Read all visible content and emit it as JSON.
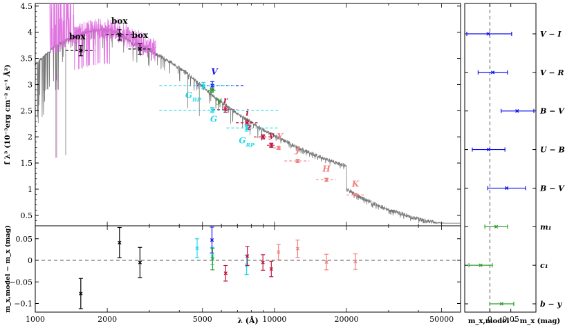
{
  "chart_data": [
    {
      "type": "scatter",
      "panel": "main-sed",
      "xlabel": "λ (Å)",
      "ylabel": "f λ³ (10⁻³erg cm⁻² s⁻¹ Å²)",
      "x_scale": "log",
      "xlim": [
        1000,
        60000
      ],
      "ylim": [
        0.3,
        4.55
      ],
      "x_ticks": [
        1000,
        2000,
        5000,
        10000,
        20000,
        50000
      ],
      "x_tick_labels": [
        "1000",
        "2000",
        "5000",
        "10000",
        "20000",
        "50000"
      ],
      "y_ticks": [
        0.5,
        1,
        1.5,
        2,
        2.5,
        3,
        3.5,
        4,
        4.5
      ],
      "y_tick_labels": [
        "0.5",
        "1",
        "1.5",
        "2",
        "2.5",
        "3",
        "3.5",
        "4",
        "4.5"
      ],
      "points": [
        {
          "label": "box",
          "x": 1550,
          "y": 3.65,
          "xlo": 1340,
          "xhi": 1780,
          "yerr": 0.1,
          "color": "#000000",
          "label_dx": -5,
          "label_dy": -16
        },
        {
          "label": "box",
          "x": 2250,
          "y": 3.95,
          "xlo": 1980,
          "xhi": 2580,
          "yerr": 0.1,
          "color": "#000000",
          "label_dx": 0,
          "label_dy": -16
        },
        {
          "label": "box",
          "x": 2740,
          "y": 3.68,
          "xlo": 2450,
          "xhi": 3050,
          "yerr": 0.1,
          "color": "#000000",
          "label_dx": 0,
          "label_dy": -16
        },
        {
          "label": "V",
          "x": 5500,
          "y": 2.98,
          "xlo": 4750,
          "xhi": 7500,
          "yerr": 0.08,
          "color": "#1010ee",
          "label_dx": 3,
          "label_dy": -16
        },
        {
          "label": "y",
          "x": 5480,
          "y": 2.89,
          "xlo": 5270,
          "xhi": 5690,
          "yerr": 0.04,
          "color": "#2e9e2e",
          "label_dx": 10,
          "label_dy": 18
        },
        {
          "label": "r",
          "x": 6250,
          "y": 2.52,
          "xlo": 5500,
          "xhi": 7000,
          "yerr": 0.05,
          "color": "#c0143c",
          "label_dx": 0,
          "label_dy": -10
        },
        {
          "label": "i",
          "x": 7700,
          "y": 2.27,
          "xlo": 6900,
          "xhi": 8500,
          "yerr": 0.05,
          "color": "#c0143c",
          "label_dx": 0,
          "label_dy": -10
        },
        {
          "label": "z",
          "x": 8950,
          "y": 2.0,
          "xlo": 8200,
          "xhi": 9700,
          "yerr": 0.04,
          "color": "#c0143c",
          "label_dx": -20,
          "label_dy": -10
        },
        {
          "label": "y",
          "x": 9700,
          "y": 1.84,
          "xlo": 9300,
          "xhi": 10100,
          "yerr": 0.04,
          "color": "#c0143c",
          "label_dx": 0,
          "label_dy": -11
        },
        {
          "label": "Y",
          "x": 10400,
          "y": 1.79,
          "xlo": 9900,
          "xhi": 10900,
          "yerr": 0.03,
          "color": "#f08080",
          "label_dx": 2,
          "label_dy": -12
        },
        {
          "label": "J",
          "x": 12500,
          "y": 1.54,
          "xlo": 11000,
          "xhi": 14000,
          "yerr": 0.03,
          "color": "#f08080",
          "label_dx": 0,
          "label_dy": -12
        },
        {
          "label": "H",
          "x": 16500,
          "y": 1.18,
          "xlo": 14900,
          "xhi": 18100,
          "yerr": 0.03,
          "color": "#f08080",
          "label_dx": 0,
          "label_dy": -12
        },
        {
          "label": "K",
          "x": 21800,
          "y": 0.89,
          "xlo": 20000,
          "xhi": 24000,
          "yerr": 0.02,
          "color": "#f08080",
          "label_dx": 0,
          "label_dy": -12
        },
        {
          "label": "G_BP",
          "x": 5050,
          "y": 2.98,
          "xlo": 3300,
          "xhi": 6800,
          "yerr": 0.06,
          "color": "#20d8e8",
          "label_dx": -15,
          "label_dy": 18
        },
        {
          "label": "G",
          "x": 5500,
          "y": 2.51,
          "xlo": 3300,
          "xhi": 10500,
          "yerr": 0.05,
          "color": "#20d8e8",
          "label_dx": 2,
          "label_dy": 17
        },
        {
          "label": "G_RP",
          "x": 7650,
          "y": 2.17,
          "xlo": 6300,
          "xhi": 10500,
          "yerr": 0.06,
          "color": "#20d8e8",
          "label_dx": 0,
          "label_dy": 22
        }
      ]
    },
    {
      "type": "scatter",
      "panel": "residuals",
      "xlabel": "λ (Å)",
      "ylabel": "m_x,model − m_x (mag)",
      "x_scale": "log",
      "xlim": [
        1000,
        60000
      ],
      "ylim": [
        -0.12,
        0.08
      ],
      "y_ticks": [
        -0.1,
        -0.05,
        0,
        0.05
      ],
      "y_tick_labels": [
        "−0.1",
        "−0.05",
        "0",
        "0.05"
      ],
      "points": [
        {
          "x": 1550,
          "y": -0.077,
          "err": 0.035,
          "color": "#000000"
        },
        {
          "x": 2250,
          "y": 0.041,
          "err": 0.035,
          "color": "#000000"
        },
        {
          "x": 2740,
          "y": -0.005,
          "err": 0.035,
          "color": "#000000"
        },
        {
          "x": 4750,
          "y": 0.028,
          "err": 0.022,
          "color": "#20d8e8"
        },
        {
          "x": 5500,
          "y": 0.01,
          "err": 0.02,
          "color": "#20d8e8"
        },
        {
          "x": 7650,
          "y": -0.011,
          "err": 0.022,
          "color": "#20d8e8"
        },
        {
          "x": 5480,
          "y": 0.047,
          "err": 0.03,
          "color": "#1010ee"
        },
        {
          "x": 5510,
          "y": 0.003,
          "err": 0.025,
          "color": "#2e9e2e"
        },
        {
          "x": 6250,
          "y": -0.03,
          "err": 0.018,
          "color": "#c0143c"
        },
        {
          "x": 7700,
          "y": 0.01,
          "err": 0.022,
          "color": "#c0143c"
        },
        {
          "x": 8950,
          "y": -0.005,
          "err": 0.018,
          "color": "#c0143c"
        },
        {
          "x": 9700,
          "y": -0.02,
          "err": 0.018,
          "color": "#c0143c"
        },
        {
          "x": 10400,
          "y": 0.019,
          "err": 0.018,
          "color": "#f08080"
        },
        {
          "x": 12500,
          "y": 0.027,
          "err": 0.02,
          "color": "#f08080"
        },
        {
          "x": 16500,
          "y": -0.004,
          "err": 0.018,
          "color": "#f08080"
        },
        {
          "x": 21800,
          "y": -0.003,
          "err": 0.018,
          "color": "#f08080"
        }
      ]
    },
    {
      "type": "scatter",
      "panel": "color-residuals",
      "xlabel": "m_x,model − m_x (mag)",
      "xlim": [
        -0.06,
        0.11
      ],
      "x_ticks": [
        0,
        0.05
      ],
      "x_tick_labels": [
        "0",
        "0.05"
      ],
      "rows": [
        {
          "label": "V − I",
          "x": -0.004,
          "xlo": -0.055,
          "xhi": 0.052,
          "color": "#1010ee"
        },
        {
          "label": "V − R",
          "x": 0.007,
          "xlo": -0.028,
          "xhi": 0.042,
          "color": "#1010ee"
        },
        {
          "label": "B − V",
          "x": 0.065,
          "xlo": 0.027,
          "xhi": 0.105,
          "color": "#1010ee"
        },
        {
          "label": "U − B",
          "x": -0.003,
          "xlo": -0.042,
          "xhi": 0.036,
          "color": "#1010ee"
        },
        {
          "label": "B − V",
          "x": 0.04,
          "xlo": -0.005,
          "xhi": 0.085,
          "color": "#1010ee"
        },
        {
          "label": "m₁",
          "x": 0.015,
          "xlo": -0.012,
          "xhi": 0.042,
          "color": "#2e9e2e"
        },
        {
          "label": "c₁",
          "x": -0.022,
          "xlo": -0.05,
          "xhi": 0.006,
          "color": "#2e9e2e"
        },
        {
          "label": "b − y",
          "x": 0.028,
          "xlo": 0.0,
          "xhi": 0.057,
          "color": "#2e9e2e"
        }
      ]
    }
  ]
}
